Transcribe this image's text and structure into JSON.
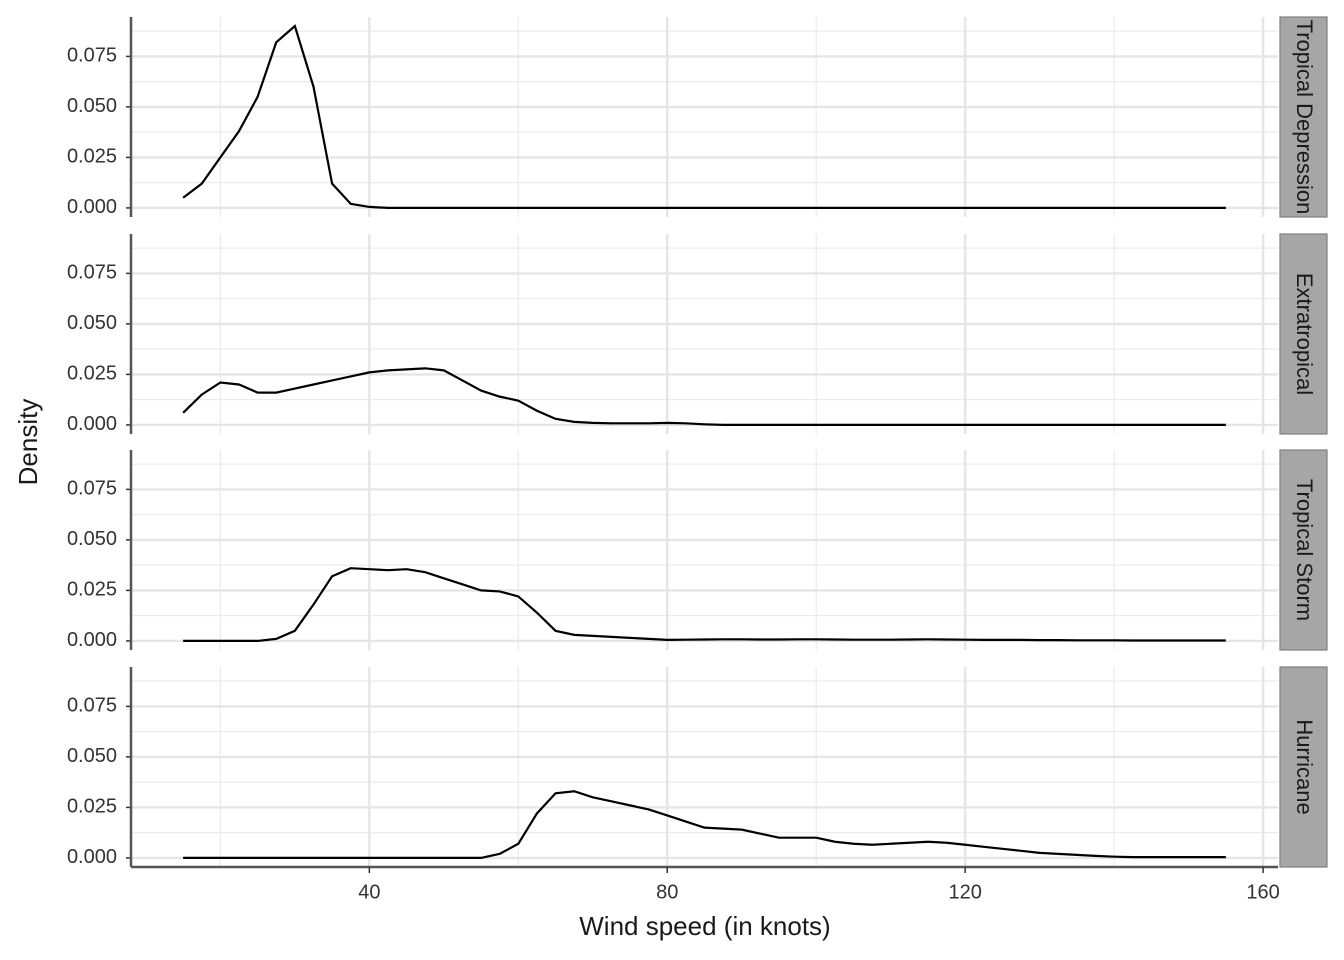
{
  "chart_data": {
    "type": "line",
    "facet": true,
    "x_label": "Wind speed (in knots)",
    "y_label": "Density",
    "x": [
      15,
      17.5,
      20,
      22.5,
      25,
      27.5,
      30,
      32.5,
      35,
      37.5,
      40,
      42.5,
      45,
      47.5,
      50,
      52.5,
      55,
      57.5,
      60,
      62.5,
      65,
      67.5,
      70,
      72.5,
      75,
      77.5,
      80,
      82.5,
      85,
      87.5,
      90,
      92.5,
      95,
      97.5,
      100,
      102.5,
      105,
      107.5,
      110,
      112.5,
      115,
      117.5,
      120,
      122.5,
      125,
      127.5,
      130,
      132.5,
      135,
      137.5,
      140,
      142.5,
      145,
      147.5,
      150,
      152.5,
      155
    ],
    "series": [
      {
        "name": "Tropical Depression",
        "color": "#000000",
        "values": [
          0.005,
          0.012,
          0.025,
          0.038,
          0.055,
          0.082,
          0.09,
          0.06,
          0.012,
          0.002,
          0.0005,
          0,
          0,
          0,
          0,
          0,
          0,
          0,
          0,
          0,
          0,
          0,
          0,
          0,
          0,
          0,
          0,
          0,
          0,
          0,
          0,
          0,
          0,
          0,
          0,
          0,
          0,
          0,
          0,
          0,
          0,
          0,
          0,
          0,
          0,
          0,
          0,
          0,
          0,
          0,
          0,
          0,
          0,
          0,
          0,
          0,
          0
        ]
      },
      {
        "name": "Extratropical",
        "color": "#000000",
        "values": [
          0.006,
          0.015,
          0.021,
          0.02,
          0.016,
          0.016,
          0.018,
          0.02,
          0.022,
          0.024,
          0.026,
          0.027,
          0.0275,
          0.028,
          0.027,
          0.022,
          0.017,
          0.014,
          0.012,
          0.007,
          0.003,
          0.0015,
          0.001,
          0.0008,
          0.0008,
          0.0008,
          0.001,
          0.0008,
          0.0003,
          0,
          0,
          0,
          0,
          0,
          0,
          0,
          0,
          0,
          0,
          0,
          0,
          0,
          0,
          0,
          0,
          0,
          0,
          0,
          0,
          0,
          0,
          0,
          0,
          0,
          0,
          0,
          0
        ]
      },
      {
        "name": "Tropical Storm",
        "color": "#000000",
        "values": [
          0,
          0,
          0,
          0,
          0,
          0.001,
          0.005,
          0.018,
          0.032,
          0.036,
          0.0355,
          0.035,
          0.0355,
          0.034,
          0.031,
          0.028,
          0.025,
          0.0245,
          0.022,
          0.014,
          0.005,
          0.003,
          0.0025,
          0.002,
          0.0015,
          0.001,
          0.0005,
          0.0006,
          0.0007,
          0.0008,
          0.0008,
          0.0007,
          0.0007,
          0.0008,
          0.0008,
          0.0007,
          0.0006,
          0.0006,
          0.0006,
          0.0007,
          0.0008,
          0.0007,
          0.0006,
          0.0005,
          0.0005,
          0.0005,
          0.0004,
          0.0004,
          0.0003,
          0.0003,
          0.0003,
          0.0002,
          0.0002,
          0.0002,
          0.0002,
          0.0002,
          0.0002
        ]
      },
      {
        "name": "Hurricane",
        "color": "#000000",
        "values": [
          0,
          0,
          0,
          0,
          0,
          0,
          0,
          0,
          0,
          0,
          0,
          0,
          0,
          0,
          0,
          0,
          0,
          0.002,
          0.007,
          0.022,
          0.032,
          0.033,
          0.03,
          0.028,
          0.026,
          0.024,
          0.021,
          0.018,
          0.015,
          0.0145,
          0.014,
          0.012,
          0.01,
          0.01,
          0.01,
          0.008,
          0.007,
          0.0065,
          0.007,
          0.0075,
          0.008,
          0.0075,
          0.0065,
          0.0055,
          0.0045,
          0.0035,
          0.0025,
          0.002,
          0.0015,
          0.001,
          0.0006,
          0.0004,
          0.0004,
          0.0004,
          0.0004,
          0.0004,
          0.0004
        ]
      }
    ],
    "xlim": [
      8,
      162
    ],
    "xticks": [
      40,
      80,
      120,
      160
    ],
    "xminor": [
      20,
      60,
      100,
      140
    ],
    "ylim": [
      -0.0045,
      0.0945
    ],
    "yticks": [
      {
        "value": 0,
        "label": "0.000"
      },
      {
        "value": 0.025,
        "label": "0.025"
      },
      {
        "value": 0.05,
        "label": "0.050"
      },
      {
        "value": 0.075,
        "label": "0.075"
      }
    ],
    "yminor": [
      0.0125,
      0.0375,
      0.0625,
      0.0875
    ],
    "grid": true
  }
}
